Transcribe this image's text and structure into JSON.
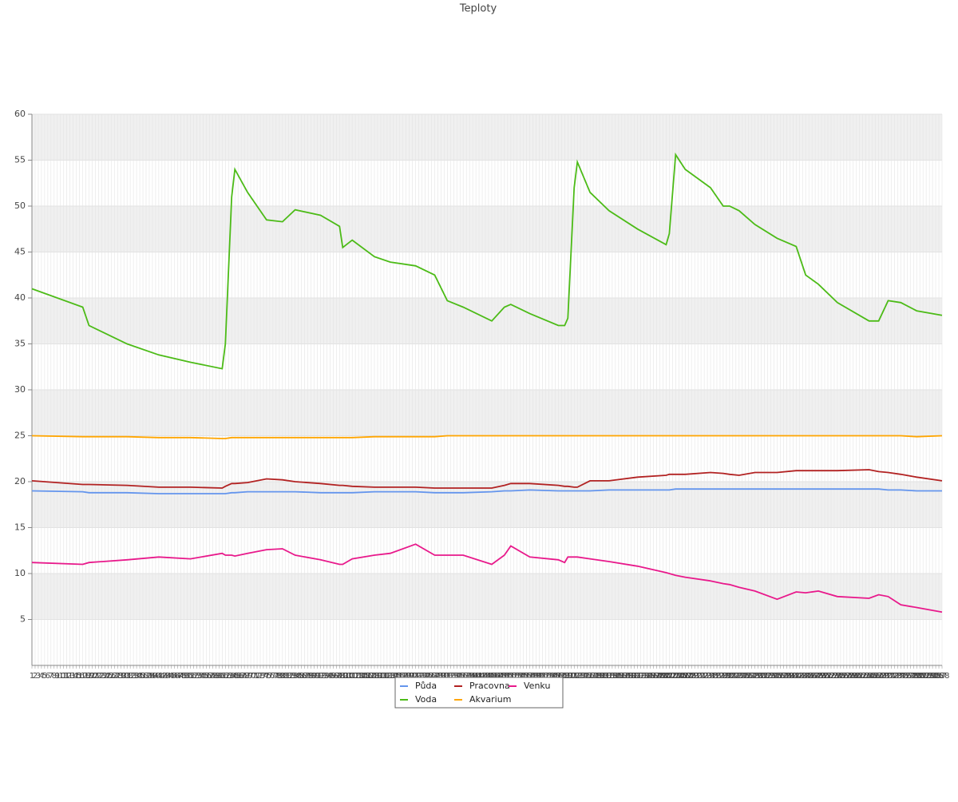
{
  "chart_data": {
    "type": "line",
    "title": "Teploty",
    "x": [
      1,
      17,
      19,
      31,
      41,
      51,
      61,
      62,
      64,
      65,
      69,
      75,
      80,
      84,
      92,
      98,
      99,
      102,
      109,
      114,
      122,
      128,
      132,
      137,
      146,
      150,
      152,
      158,
      167,
      169,
      170,
      172,
      173,
      177,
      183,
      192,
      201,
      202,
      204,
      207,
      215,
      219,
      221,
      224,
      229,
      236,
      242,
      245,
      249,
      255,
      265,
      268,
      271,
      275,
      280,
      288
    ],
    "xlim": [
      1,
      288
    ],
    "xticks": [
      1,
      2,
      3,
      4,
      5,
      6,
      7,
      8,
      9,
      10,
      11,
      12,
      13,
      14,
      15,
      16,
      17,
      18,
      19,
      20,
      21,
      22,
      23,
      24,
      25,
      26,
      27,
      28,
      29,
      30,
      31,
      32,
      33,
      34,
      35,
      36,
      37,
      38,
      39,
      40,
      41,
      42,
      43,
      44,
      45,
      46,
      47,
      48,
      49,
      50,
      51,
      52,
      53,
      54,
      55,
      56,
      57,
      58,
      59,
      60,
      61,
      62,
      63,
      64,
      65,
      66,
      67,
      68,
      69,
      70,
      71,
      72,
      73,
      74,
      75,
      76,
      77,
      78,
      79,
      80,
      81,
      82,
      83,
      84,
      85,
      86,
      87,
      88,
      89,
      90,
      91,
      92,
      93,
      94,
      95,
      96,
      97,
      98,
      99,
      100,
      101,
      102,
      103,
      104,
      105,
      106,
      107,
      108,
      109,
      110,
      111,
      112,
      113,
      114,
      115,
      116,
      117,
      118,
      119,
      120,
      121,
      122,
      123,
      124,
      125,
      126,
      127,
      128,
      129,
      130,
      131,
      132,
      133,
      134,
      135,
      136,
      137,
      138,
      139,
      140,
      141,
      142,
      143,
      144,
      145,
      146,
      147,
      148,
      149,
      150,
      151,
      152,
      153,
      154,
      155,
      156,
      157,
      158,
      159,
      160,
      161,
      162,
      163,
      164,
      165,
      166,
      167,
      168,
      169,
      170,
      171,
      172,
      173,
      174,
      175,
      176,
      177,
      178,
      179,
      180,
      181,
      182,
      183,
      184,
      185,
      186,
      187,
      188,
      189,
      190,
      191,
      192,
      193,
      194,
      195,
      196,
      197,
      198,
      199,
      200,
      201,
      202,
      203,
      204,
      205,
      206,
      207,
      208,
      209,
      210,
      211,
      212,
      213,
      214,
      215,
      216,
      217,
      218,
      219,
      220,
      221,
      222,
      223,
      224,
      225,
      226,
      227,
      228,
      229,
      230,
      231,
      232,
      233,
      234,
      235,
      236,
      237,
      238,
      239,
      240,
      241,
      242,
      243,
      244,
      245,
      246,
      247,
      248,
      249,
      250,
      251,
      252,
      253,
      254,
      255,
      256,
      257,
      258,
      259,
      260,
      261,
      262,
      263,
      264,
      265,
      266,
      267,
      268,
      269,
      270,
      271,
      272,
      273,
      274,
      275,
      276,
      277,
      278,
      279,
      280,
      281,
      282,
      283,
      284,
      285,
      286,
      287,
      288
    ],
    "ylim": [
      0,
      60
    ],
    "yticks": [
      5,
      10,
      15,
      20,
      25,
      30,
      35,
      40,
      45,
      50,
      55,
      60
    ],
    "grid": true,
    "legend": "bottom",
    "series": [
      {
        "name": "Půda",
        "color": "#6495ed",
        "values": [
          19,
          18.9,
          18.8,
          18.8,
          18.7,
          18.7,
          18.7,
          18.7,
          18.8,
          18.8,
          18.9,
          18.9,
          18.9,
          18.9,
          18.8,
          18.8,
          18.8,
          18.8,
          18.9,
          18.9,
          18.9,
          18.8,
          18.8,
          18.8,
          18.9,
          19,
          19,
          19.1,
          19,
          19,
          19,
          19,
          19,
          19,
          19.1,
          19.1,
          19.1,
          19.1,
          19.2,
          19.2,
          19.2,
          19.2,
          19.2,
          19.2,
          19.2,
          19.2,
          19.2,
          19.2,
          19.2,
          19.2,
          19.2,
          19.2,
          19.1,
          19.1,
          19,
          19
        ]
      },
      {
        "name": "Voda",
        "color": "#4cbb17",
        "values": [
          41,
          39,
          37,
          35,
          33.8,
          33,
          32.3,
          35,
          51,
          54,
          51.5,
          48.5,
          48.3,
          49.6,
          49,
          47.8,
          45.5,
          46.3,
          44.5,
          43.9,
          43.5,
          42.5,
          39.7,
          39,
          37.5,
          39,
          39.3,
          38.3,
          37,
          37,
          37.8,
          52,
          54.8,
          51.5,
          49.5,
          47.5,
          45.8,
          47,
          55.6,
          54,
          52,
          50,
          50,
          49.5,
          48,
          46.5,
          45.6,
          42.5,
          41.5,
          39.5,
          37.5,
          37.5,
          39.7,
          39.5,
          38.6,
          38.1
        ]
      },
      {
        "name": "Pracovna",
        "color": "#b22222",
        "values": [
          20.1,
          19.7,
          19.7,
          19.6,
          19.4,
          19.4,
          19.3,
          19.5,
          19.8,
          19.8,
          19.9,
          20.3,
          20.2,
          20,
          19.8,
          19.6,
          19.6,
          19.5,
          19.4,
          19.4,
          19.4,
          19.3,
          19.3,
          19.3,
          19.3,
          19.6,
          19.8,
          19.8,
          19.6,
          19.5,
          19.5,
          19.4,
          19.4,
          20.1,
          20.1,
          20.5,
          20.7,
          20.8,
          20.8,
          20.8,
          21,
          20.9,
          20.8,
          20.7,
          21,
          21,
          21.2,
          21.2,
          21.2,
          21.2,
          21.3,
          21.1,
          21,
          20.8,
          20.5,
          20.1
        ]
      },
      {
        "name": "Akvarium",
        "color": "#ffa500",
        "values": [
          25,
          24.9,
          24.9,
          24.9,
          24.8,
          24.8,
          24.7,
          24.7,
          24.8,
          24.8,
          24.8,
          24.8,
          24.8,
          24.8,
          24.8,
          24.8,
          24.8,
          24.8,
          24.9,
          24.9,
          24.9,
          24.9,
          25,
          25,
          25,
          25,
          25,
          25,
          25,
          25,
          25,
          25,
          25,
          25,
          25,
          25,
          25,
          25,
          25,
          25,
          25,
          25,
          25,
          25,
          25,
          25,
          25,
          25,
          25,
          25,
          25,
          25,
          25,
          25,
          24.9,
          25
        ]
      },
      {
        "name": "Venku",
        "color": "#e8198b",
        "values": [
          11.2,
          11,
          11.2,
          11.5,
          11.8,
          11.6,
          12.2,
          12,
          12,
          11.9,
          12.2,
          12.6,
          12.7,
          12,
          11.5,
          11,
          11,
          11.6,
          12,
          12.2,
          13.2,
          12,
          12,
          12,
          11,
          12,
          13,
          11.8,
          11.5,
          11.2,
          11.8,
          11.8,
          11.8,
          11.6,
          11.3,
          10.8,
          10.1,
          10,
          9.8,
          9.6,
          9.2,
          8.9,
          8.8,
          8.5,
          8.1,
          7.2,
          8,
          7.9,
          8.1,
          7.5,
          7.3,
          7.7,
          7.5,
          6.6,
          6.3,
          5.8
        ]
      }
    ]
  }
}
